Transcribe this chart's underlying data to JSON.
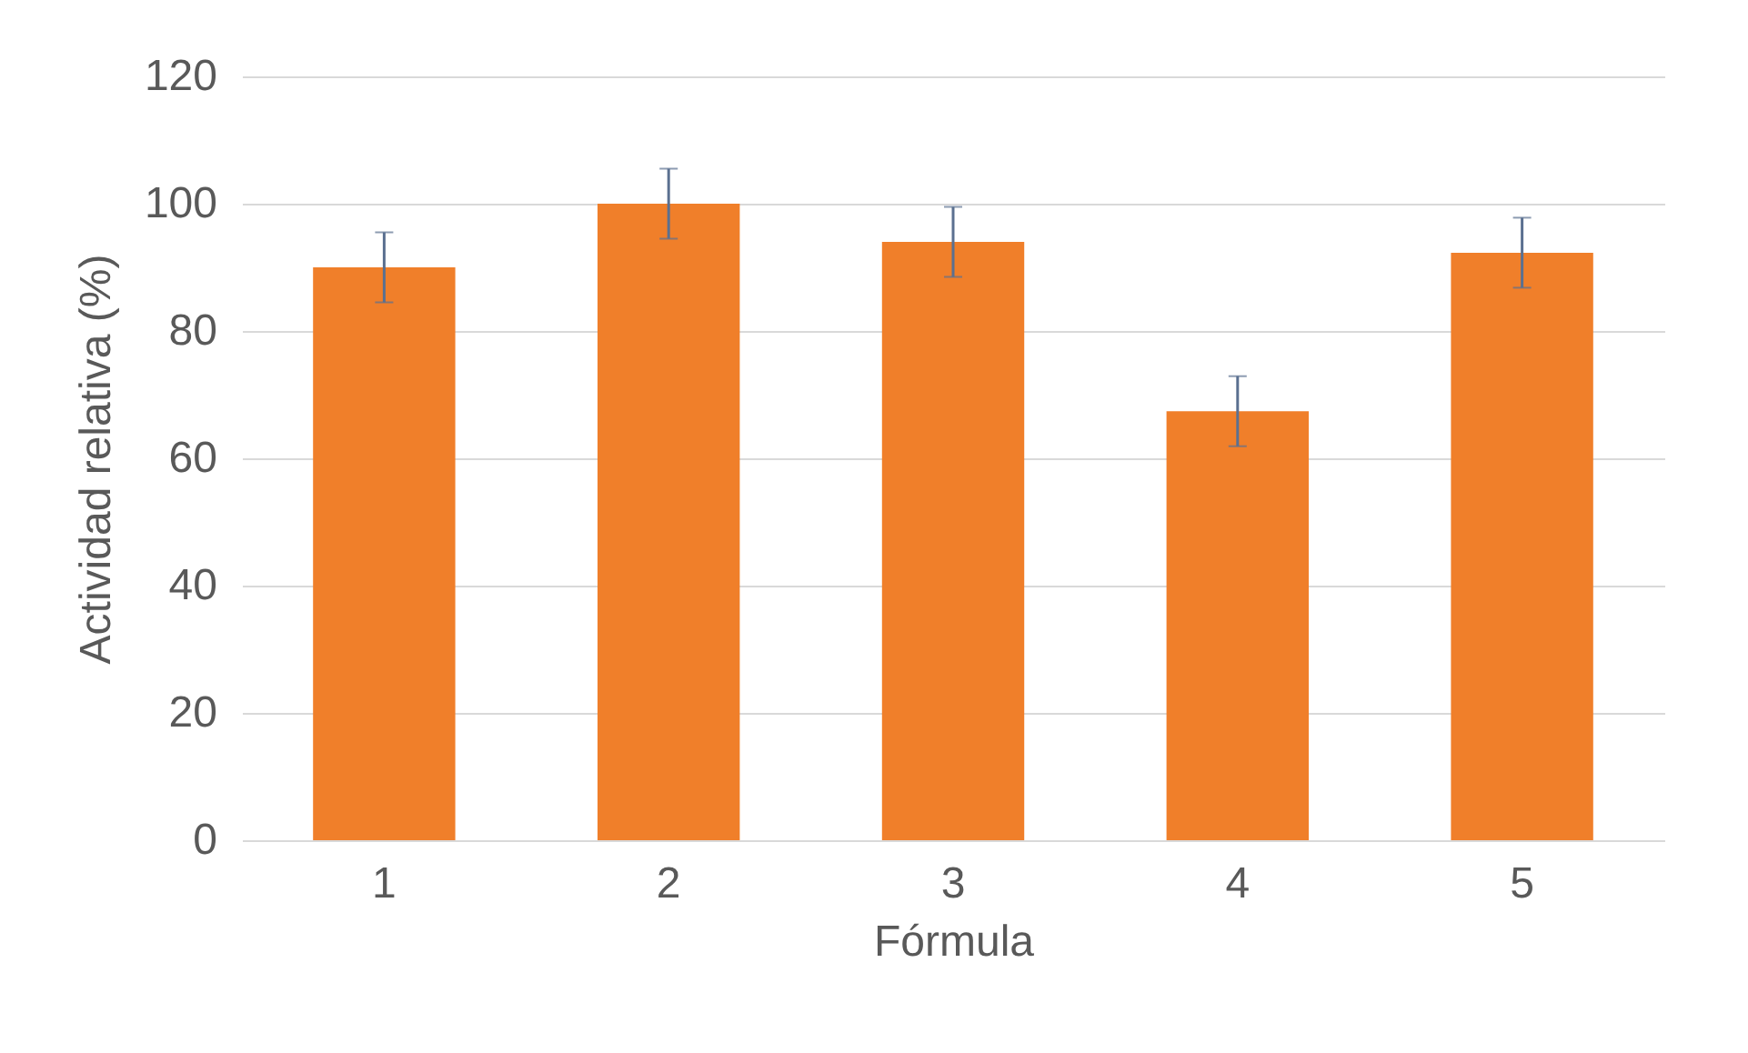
{
  "chart_data": {
    "type": "bar",
    "xlabel": "Fórmula",
    "ylabel": "Actividad relativa (%)",
    "categories": [
      "1",
      "2",
      "3",
      "4",
      "5"
    ],
    "values": [
      90,
      100,
      94,
      67.4,
      92.3
    ],
    "errors": [
      5.5,
      5.5,
      5.5,
      5.5,
      5.5
    ],
    "color": "#f07f2a",
    "ylim": [
      0,
      120
    ],
    "yticks": [
      0,
      20,
      40,
      60,
      80,
      100,
      120
    ],
    "grid": "y"
  }
}
